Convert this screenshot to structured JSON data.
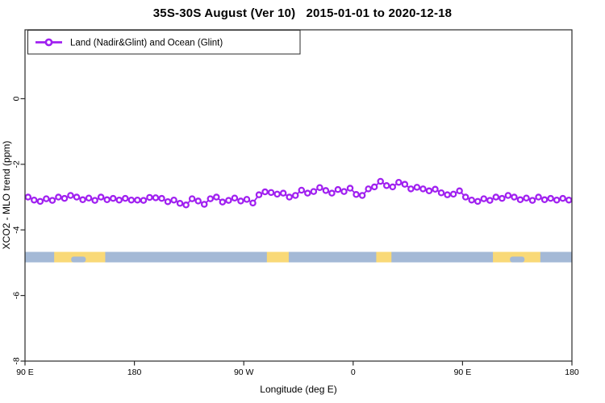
{
  "window": {
    "background": "#ffffff"
  },
  "chart_data": {
    "type": "line",
    "title": "35S-30S August (Ver 10)   2015-01-01 to 2020-12-18",
    "xlabel": "Longitude (deg E)",
    "ylabel": "XCO2 - MLO trend (ppm)",
    "xlim": [
      90,
      540
    ],
    "ylim": [
      -8,
      2.1
    ],
    "grid": false,
    "x_ticks": [
      {
        "pos": 90,
        "label": "90 E"
      },
      {
        "pos": 180,
        "label": "180"
      },
      {
        "pos": 270,
        "label": "90 W"
      },
      {
        "pos": 360,
        "label": "0"
      },
      {
        "pos": 450,
        "label": "90 E"
      },
      {
        "pos": 540,
        "label": "180"
      }
    ],
    "y_ticks": [
      {
        "pos": 0,
        "label": "0"
      },
      {
        "pos": -2,
        "label": "-2"
      },
      {
        "pos": -4,
        "label": "-4"
      },
      {
        "pos": -6,
        "label": "-6"
      },
      {
        "pos": -8,
        "label": "-8"
      }
    ],
    "legend": {
      "position": "top-left",
      "entries": [
        {
          "label": "Land (Nadir&Glint) and Ocean (Glint)",
          "color": "#a020f0",
          "marker": "open-circle"
        }
      ]
    },
    "series": [
      {
        "name": "Land (Nadir&Glint) and Ocean (Glint)",
        "color": "#a020f0",
        "marker": "open-circle",
        "x": [
          92.5,
          97.5,
          102.5,
          107.5,
          112.5,
          117.5,
          122.5,
          127.5,
          132.5,
          137.5,
          142.5,
          147.5,
          152.5,
          157.5,
          162.5,
          167.5,
          172.5,
          177.5,
          182.5,
          187.5,
          192.5,
          197.5,
          202.5,
          207.5,
          212.5,
          217.5,
          222.5,
          227.5,
          232.5,
          237.5,
          242.5,
          247.5,
          252.5,
          257.5,
          262.5,
          267.5,
          272.5,
          277.5,
          282.5,
          287.5,
          292.5,
          297.5,
          302.5,
          307.5,
          312.5,
          317.5,
          322.5,
          327.5,
          332.5,
          337.5,
          342.5,
          347.5,
          352.5,
          357.5,
          362.5,
          367.5,
          372.5,
          377.5,
          382.5,
          387.5,
          392.5,
          397.5,
          402.5,
          407.5,
          412.5,
          417.5,
          422.5,
          427.5,
          432.5,
          437.5,
          442.5,
          447.5,
          452.5,
          457.5,
          462.5,
          467.5,
          472.5,
          477.5,
          482.5,
          487.5,
          492.5,
          497.5,
          502.5,
          507.5,
          512.5,
          517.5,
          522.5,
          527.5,
          532.5,
          537.5
        ],
        "y": [
          -3.0,
          -3.09,
          -3.13,
          -3.05,
          -3.1,
          -3.0,
          -3.04,
          -2.95,
          -3.0,
          -3.08,
          -3.03,
          -3.1,
          -3.0,
          -3.08,
          -3.04,
          -3.09,
          -3.04,
          -3.09,
          -3.09,
          -3.1,
          -3.01,
          -3.02,
          -3.04,
          -3.14,
          -3.09,
          -3.19,
          -3.24,
          -3.05,
          -3.12,
          -3.22,
          -3.05,
          -3.0,
          -3.15,
          -3.1,
          -3.03,
          -3.12,
          -3.07,
          -3.18,
          -2.93,
          -2.84,
          -2.86,
          -2.91,
          -2.88,
          -3.0,
          -2.95,
          -2.79,
          -2.88,
          -2.83,
          -2.71,
          -2.8,
          -2.88,
          -2.77,
          -2.83,
          -2.73,
          -2.92,
          -2.95,
          -2.75,
          -2.69,
          -2.52,
          -2.65,
          -2.69,
          -2.55,
          -2.61,
          -2.75,
          -2.7,
          -2.75,
          -2.81,
          -2.76,
          -2.87,
          -2.93,
          -2.91,
          -2.81,
          -3.0,
          -3.09,
          -3.13,
          -3.05,
          -3.1,
          -3.0,
          -3.04,
          -2.95,
          -3.0,
          -3.08,
          -3.03,
          -3.1,
          -3.0,
          -3.08,
          -3.04,
          -3.09,
          -3.04,
          -3.09
        ]
      }
    ],
    "map_strip": {
      "y_top": -4.67,
      "y_bottom": -4.99,
      "ocean_color": "#a4b9d6",
      "land_color": "#f9d977",
      "ocean_range": [
        90,
        540
      ],
      "land_patches": [
        {
          "from": 114,
          "to": 156,
          "notch_from": 128,
          "notch_to": 140
        },
        {
          "from": 289,
          "to": 307
        },
        {
          "from": 379,
          "to": 391.5
        },
        {
          "from": 475,
          "to": 514,
          "notch_from": 489,
          "notch_to": 501
        }
      ]
    },
    "axis_color": "#2a2a2a",
    "text_color": "#000000"
  }
}
